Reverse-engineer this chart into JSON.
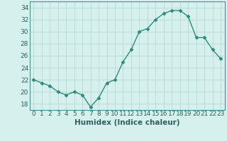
{
  "x": [
    0,
    1,
    2,
    3,
    4,
    5,
    6,
    7,
    8,
    9,
    10,
    11,
    12,
    13,
    14,
    15,
    16,
    17,
    18,
    19,
    20,
    21,
    22,
    23
  ],
  "y": [
    22,
    21.5,
    21,
    20,
    19.5,
    20,
    19.5,
    17.5,
    19,
    21.5,
    22,
    25,
    27,
    30,
    30.5,
    32,
    33,
    33.5,
    33.5,
    32.5,
    29,
    29,
    27,
    25.5
  ],
  "line_color": "#2e8b7a",
  "marker": "D",
  "marker_size": 2.5,
  "background_color": "#d6f0ee",
  "grid_color": "#b8d8d4",
  "xlabel": "Humidex (Indice chaleur)",
  "ylim": [
    17,
    35
  ],
  "xlim": [
    -0.5,
    23.5
  ],
  "yticks": [
    18,
    20,
    22,
    24,
    26,
    28,
    30,
    32,
    34
  ],
  "xticks": [
    0,
    1,
    2,
    3,
    4,
    5,
    6,
    7,
    8,
    9,
    10,
    11,
    12,
    13,
    14,
    15,
    16,
    17,
    18,
    19,
    20,
    21,
    22,
    23
  ],
  "xlabel_fontsize": 7.5,
  "tick_fontsize": 6.5,
  "tick_color": "#2e6060",
  "spine_color": "#4a9090",
  "line_width": 1.0
}
